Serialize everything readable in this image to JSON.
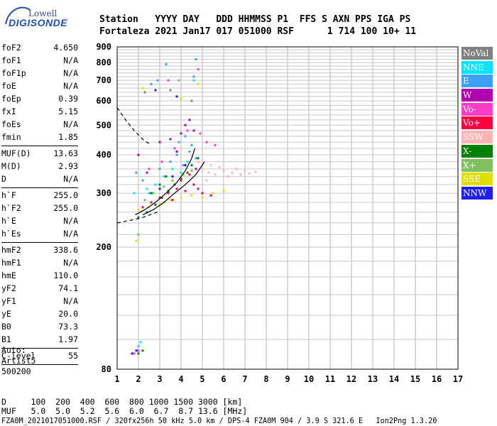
{
  "logo": {
    "company": "Lowell",
    "product": "DIGISONDE"
  },
  "header": {
    "row1": "Station   YYYY DAY   DDD HHMMSS P1  FFS S AXN PPS IGA PS",
    "row2": "Fortaleza 2021 Jan17 017 051000 RSF      1 714 100 10+ 11"
  },
  "params": {
    "group1": [
      {
        "k": "foF2",
        "v": "4.650"
      },
      {
        "k": "foF1",
        "v": "N/A"
      },
      {
        "k": "foF1p",
        "v": "N/A"
      },
      {
        "k": "foE",
        "v": "N/A"
      },
      {
        "k": "foEp",
        "v": "0.39"
      },
      {
        "k": "fxI",
        "v": "5.15"
      },
      {
        "k": "foEs",
        "v": "N/A"
      },
      {
        "k": "fmin",
        "v": "1.85"
      }
    ],
    "group2": [
      {
        "k": "MUF(D)",
        "v": "13.63"
      },
      {
        "k": "M(D)",
        "v": "2.93"
      },
      {
        "k": "D",
        "v": "N/A"
      }
    ],
    "group3": [
      {
        "k": "h`F",
        "v": "255.0"
      },
      {
        "k": "h`F2",
        "v": "255.0"
      },
      {
        "k": "h`E",
        "v": "N/A"
      },
      {
        "k": "h`Es",
        "v": "N/A"
      }
    ],
    "group4": [
      {
        "k": "hmF2",
        "v": "338.6"
      },
      {
        "k": "hmF1",
        "v": "N/A"
      },
      {
        "k": "hmE",
        "v": "110.0"
      },
      {
        "k": "yF2",
        "v": "74.1"
      },
      {
        "k": "yF1",
        "v": "N/A"
      },
      {
        "k": "yE",
        "v": "20.0"
      },
      {
        "k": "B0",
        "v": "73.3"
      },
      {
        "k": "B1",
        "v": "1.97"
      }
    ],
    "group5": [
      {
        "k": "C-level",
        "v": "55"
      }
    ]
  },
  "auto": {
    "line1": "Auto:",
    "line2": "Artist5",
    "line3": "500200"
  },
  "legend": [
    {
      "label": "NoVal",
      "color": "#808080"
    },
    {
      "label": "NNE",
      "color": "#00e5ff"
    },
    {
      "label": "E",
      "color": "#3ca0ff"
    },
    {
      "label": "W",
      "color": "#b000b0"
    },
    {
      "label": "Vo-",
      "color": "#ff3cc8"
    },
    {
      "label": "Vo+",
      "color": "#ff0040"
    },
    {
      "label": "SSW",
      "color": "#ffb4b4"
    },
    {
      "label": "X-",
      "color": "#008000"
    },
    {
      "label": "X+",
      "color": "#80c060"
    },
    {
      "label": "SSE",
      "color": "#e0e000"
    },
    {
      "label": "NNW",
      "color": "#1e1ef0"
    }
  ],
  "footer": {
    "d_row": "D     100  200  400  600  800 1000 1500 3000 [km]",
    "muf_row": "MUF   5.0  5.0  5.2  5.6  6.0  6.7  8.7 13.6 [MHz]",
    "file_row": "FZA0M_2021017051000.RSF / 320fx256h 50 kHz 5.0 km / DPS-4 FZA0M 904 / 3.9 S 321.6 E   Ion2Png 1.3.20"
  },
  "chart_data": {
    "type": "scatter",
    "title": "",
    "xlabel": "",
    "ylabel": "",
    "xlim": [
      1,
      17
    ],
    "ylim": [
      80,
      900
    ],
    "x_ticks": [
      1,
      2,
      3,
      4,
      5,
      6,
      7,
      8,
      9,
      10,
      11,
      12,
      13,
      14,
      15,
      16,
      17
    ],
    "y_ticks": [
      80,
      200,
      300,
      400,
      500,
      600,
      700,
      800,
      900
    ],
    "y_scale": "log",
    "grid": true,
    "legend_position": "right",
    "series": [
      {
        "name": "SSW",
        "color": "#ffb4b4",
        "points": [
          [
            5.0,
            360
          ],
          [
            5.3,
            350
          ],
          [
            5.6,
            345
          ],
          [
            6.0,
            355
          ],
          [
            6.4,
            350
          ],
          [
            6.8,
            345
          ],
          [
            7.2,
            348
          ],
          [
            7.5,
            352
          ],
          [
            5.8,
            365
          ],
          [
            6.2,
            340
          ],
          [
            6.6,
            360
          ],
          [
            7.0,
            355
          ],
          [
            5.4,
            370
          ],
          [
            5.2,
            330
          ],
          [
            4.8,
            380
          ]
        ]
      },
      {
        "name": "Vo+",
        "color": "#ff0040",
        "points": [
          [
            2.2,
            270
          ],
          [
            2.6,
            280
          ],
          [
            3.0,
            290
          ],
          [
            3.4,
            300
          ],
          [
            3.8,
            310
          ],
          [
            4.2,
            305
          ],
          [
            4.6,
            320
          ],
          [
            5.0,
            300
          ],
          [
            5.4,
            295
          ],
          [
            4.0,
            330
          ],
          [
            3.6,
            285
          ],
          [
            2.8,
            275
          ],
          [
            4.4,
            345
          ],
          [
            4.8,
            310
          ]
        ]
      },
      {
        "name": "SSE",
        "color": "#e0e000",
        "points": [
          [
            2.0,
            265
          ],
          [
            2.5,
            270
          ],
          [
            3.0,
            275
          ],
          [
            3.5,
            285
          ],
          [
            4.0,
            290
          ],
          [
            4.5,
            295
          ],
          [
            5.0,
            290
          ],
          [
            5.5,
            300
          ],
          [
            6.0,
            305
          ],
          [
            2.2,
            660
          ],
          [
            4.8,
            680
          ],
          [
            4.0,
            610
          ],
          [
            1.9,
            210
          ],
          [
            3.2,
            280
          ]
        ]
      },
      {
        "name": "E",
        "color": "#3ca0ff",
        "points": [
          [
            3.5,
            380
          ],
          [
            3.8,
            400
          ],
          [
            4.1,
            370
          ],
          [
            4.4,
            410
          ],
          [
            4.7,
            390
          ],
          [
            3.9,
            440
          ],
          [
            4.2,
            460
          ],
          [
            4.5,
            430
          ],
          [
            2.6,
            680
          ],
          [
            2.9,
            700
          ],
          [
            4.6,
            720
          ],
          [
            4.7,
            820
          ],
          [
            3.3,
            790
          ],
          [
            1.9,
            350
          ],
          [
            2.2,
            330
          ],
          [
            3.0,
            360
          ]
        ]
      },
      {
        "name": "NNE",
        "color": "#00e5ff",
        "points": [
          [
            2.0,
            95
          ],
          [
            2.1,
            98
          ],
          [
            2.5,
            300
          ],
          [
            2.8,
            320
          ],
          [
            3.2,
            340
          ],
          [
            3.6,
            360
          ],
          [
            4.0,
            350
          ],
          [
            4.3,
            380
          ],
          [
            4.6,
            700
          ],
          [
            1.8,
            300
          ],
          [
            2.4,
            310
          ]
        ]
      },
      {
        "name": "X-",
        "color": "#008000",
        "points": [
          [
            2.0,
            250
          ],
          [
            2.4,
            260
          ],
          [
            2.8,
            275
          ],
          [
            3.1,
            290
          ],
          [
            3.4,
            305
          ],
          [
            3.7,
            320
          ],
          [
            4.0,
            335
          ],
          [
            4.3,
            350
          ],
          [
            4.5,
            370
          ],
          [
            2.6,
            300
          ],
          [
            3.0,
            320
          ],
          [
            3.3,
            340
          ],
          [
            2.2,
            92
          ],
          [
            2.0,
            90
          ],
          [
            4.8,
            390
          ]
        ]
      },
      {
        "name": "X+",
        "color": "#80c060",
        "points": [
          [
            2.3,
            285
          ],
          [
            2.7,
            300
          ],
          [
            3.2,
            315
          ],
          [
            3.6,
            330
          ],
          [
            4.1,
            345
          ],
          [
            3.9,
            700
          ],
          [
            2.0,
            220
          ],
          [
            4.5,
            355
          ]
        ]
      },
      {
        "name": "W",
        "color": "#b000b0",
        "points": [
          [
            3.0,
            440
          ],
          [
            3.5,
            450
          ],
          [
            4.2,
            500
          ],
          [
            4.4,
            520
          ],
          [
            4.6,
            480
          ],
          [
            3.8,
            410
          ],
          [
            4.0,
            470
          ],
          [
            2.0,
            400
          ],
          [
            2.4,
            350
          ],
          [
            4.7,
            360
          ]
        ]
      },
      {
        "name": "Vo-",
        "color": "#ff3cc8",
        "points": [
          [
            2.5,
            360
          ],
          [
            3.1,
            380
          ],
          [
            3.7,
            420
          ],
          [
            4.3,
            480
          ],
          [
            4.9,
            470
          ],
          [
            5.2,
            440
          ],
          [
            5.6,
            430
          ],
          [
            1.8,
            90
          ],
          [
            2.0,
            92
          ],
          [
            4.8,
            760
          ],
          [
            3.4,
            700
          ]
        ]
      },
      {
        "name": "NNW",
        "color": "#1e1ef0",
        "points": [
          [
            1.7,
            90
          ],
          [
            1.9,
            92
          ],
          [
            3.0,
            310
          ],
          [
            3.6,
            340
          ],
          [
            4.2,
            370
          ],
          [
            2.8,
            650
          ],
          [
            3.8,
            620
          ]
        ]
      },
      {
        "name": "NoVal",
        "color": "#808080",
        "points": [
          [
            3.5,
            650
          ],
          [
            4.5,
            600
          ],
          [
            2.3,
            640
          ]
        ]
      }
    ],
    "profile_dashed": {
      "x": [
        1.0,
        1.4,
        1.8,
        2.2,
        2.6
      ],
      "y": [
        570,
        520,
        480,
        450,
        430
      ]
    },
    "profile_dashed2": {
      "x": [
        1.0,
        1.4,
        1.8,
        2.2,
        2.6,
        3.0
      ],
      "y": [
        240,
        243,
        246,
        250,
        256,
        262
      ]
    },
    "trace_o": {
      "x": [
        1.85,
        2.3,
        2.8,
        3.3,
        3.8,
        4.2,
        4.5,
        4.65
      ],
      "y": [
        255,
        265,
        280,
        300,
        325,
        355,
        390,
        420
      ]
    },
    "trace_x": {
      "x": [
        2.2,
        2.7,
        3.2,
        3.7,
        4.2,
        4.7,
        5.1
      ],
      "y": [
        255,
        265,
        280,
        300,
        320,
        345,
        380
      ]
    }
  }
}
